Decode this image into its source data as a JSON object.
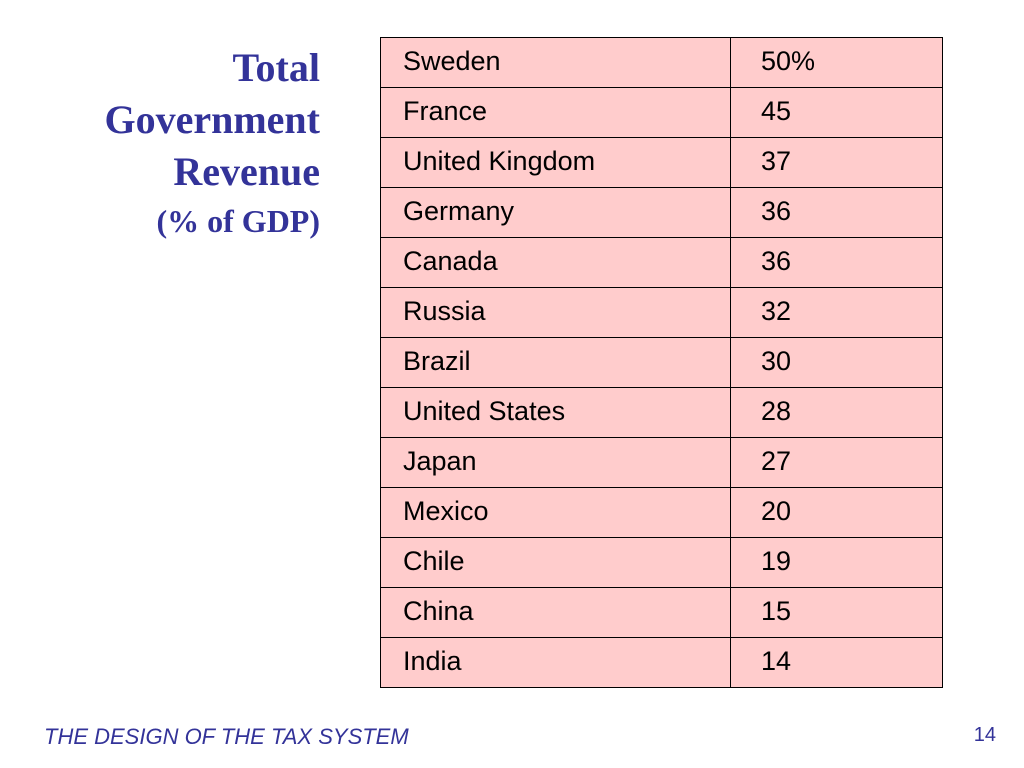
{
  "slide": {
    "title_lines": [
      "Total",
      "Government",
      "Revenue"
    ],
    "subtitle": "(% of GDP)",
    "footer": "THE DESIGN OF THE TAX SYSTEM",
    "page_number": "14"
  },
  "table": {
    "rows": [
      {
        "country": "Sweden",
        "value": "50%"
      },
      {
        "country": "France",
        "value": "45"
      },
      {
        "country": "United Kingdom",
        "value": "37"
      },
      {
        "country": "Germany",
        "value": "36"
      },
      {
        "country": "Canada",
        "value": "36"
      },
      {
        "country": "Russia",
        "value": "32"
      },
      {
        "country": "Brazil",
        "value": "30"
      },
      {
        "country": "United States",
        "value": "28"
      },
      {
        "country": "Japan",
        "value": "27"
      },
      {
        "country": "Mexico",
        "value": "20"
      },
      {
        "country": "Chile",
        "value": "19"
      },
      {
        "country": "China",
        "value": "15"
      },
      {
        "country": "India",
        "value": "14"
      }
    ]
  },
  "colors": {
    "title": "#333399",
    "table_fill": "#ffcccc",
    "table_border": "#000000"
  }
}
